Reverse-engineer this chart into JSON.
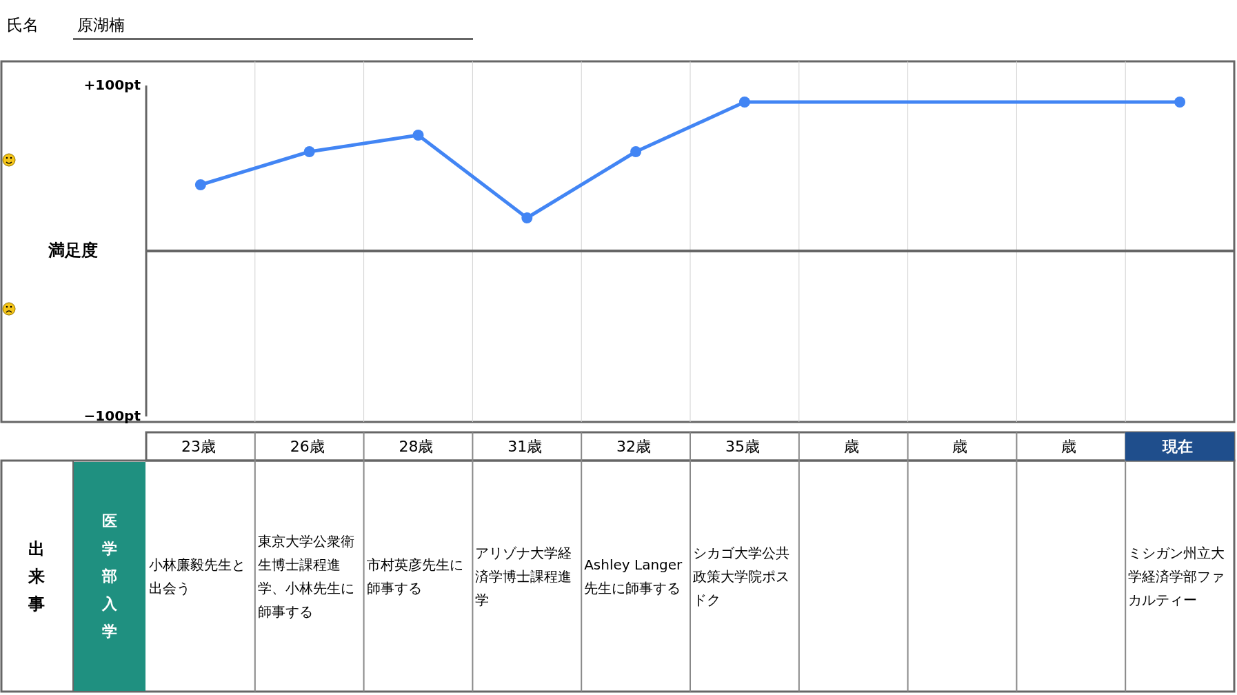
{
  "chart_data": {
    "type": "line",
    "ylabel": "満足度",
    "categories": [
      "23歳",
      "26歳",
      "28歳",
      "31歳",
      "32歳",
      "35歳",
      "歳",
      "歳",
      "歳",
      "現在"
    ],
    "series": [
      {
        "color": "#4285f4",
        "values": [
          40,
          60,
          70,
          20,
          60,
          90,
          null,
          null,
          null,
          90
        ]
      }
    ],
    "ylim": [
      -100,
      100
    ],
    "yticks": [
      {
        "value": 100,
        "label": "+100pt"
      },
      {
        "value": -100,
        "label": "−100pt"
      }
    ],
    "marker": "circle",
    "line_style": "solid",
    "ref_lines": [
      {
        "axis": "y",
        "value": 0,
        "color": "#666666"
      }
    ],
    "annotations": [
      "氏名",
      "原湖楠",
      "出来事",
      "医学部入学",
      "小林廉毅先生と出会う",
      "東京大学公衆衛生博士課程進学、小林先生に師事する",
      "市村英彦先生に師事する",
      "アリゾナ大学経済学博士課程進学",
      "Ashley Langer先生に師事する",
      "シカゴ大学公共政策大学院ポスドク",
      "ミシガン州立大学経済学部ファカルティー"
    ]
  }
}
